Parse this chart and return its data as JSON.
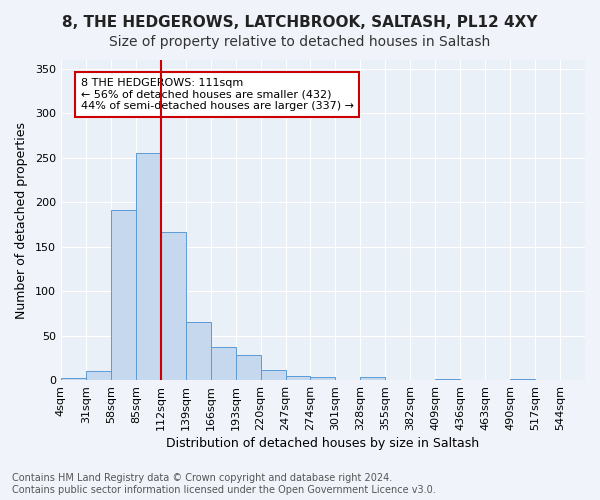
{
  "title1": "8, THE HEDGEROWS, LATCHBROOK, SALTASH, PL12 4XY",
  "title2": "Size of property relative to detached houses in Saltash",
  "xlabel": "Distribution of detached houses by size in Saltash",
  "ylabel": "Number of detached properties",
  "footnote": "Contains HM Land Registry data © Crown copyright and database right 2024.\nContains public sector information licensed under the Open Government Licence v3.0.",
  "bar_values": [
    2,
    10,
    191,
    255,
    167,
    65,
    37,
    28,
    11,
    5,
    4,
    0,
    3,
    0,
    0,
    1,
    0,
    0,
    1,
    0,
    0
  ],
  "x_labels": [
    "4sqm",
    "31sqm",
    "58sqm",
    "85sqm",
    "112sqm",
    "139sqm",
    "166sqm",
    "193sqm",
    "220sqm",
    "247sqm",
    "274sqm",
    "301sqm",
    "328sqm",
    "355sqm",
    "382sqm",
    "409sqm",
    "436sqm",
    "463sqm",
    "490sqm",
    "517sqm",
    "544sqm"
  ],
  "bar_color": "#c5d8ed",
  "bar_edge_color": "#5b9bd5",
  "vline_color": "#cc0000",
  "annotation_text": "8 THE HEDGEROWS: 111sqm\n← 56% of detached houses are smaller (432)\n44% of semi-detached houses are larger (337) →",
  "annotation_box_color": "#ffffff",
  "annotation_box_edge": "#cc0000",
  "ylim": [
    0,
    360
  ],
  "yticks": [
    0,
    50,
    100,
    150,
    200,
    250,
    300,
    350
  ],
  "background_color": "#f0f4fa",
  "plot_bg_color": "#eaf0f8",
  "grid_color": "#ffffff",
  "title1_fontsize": 11,
  "title2_fontsize": 10,
  "xlabel_fontsize": 9,
  "ylabel_fontsize": 9,
  "tick_fontsize": 8,
  "annotation_fontsize": 8,
  "footnote_fontsize": 7
}
